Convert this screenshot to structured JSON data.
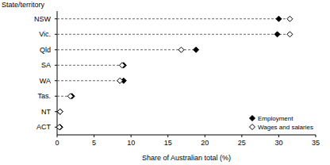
{
  "chart_data": {
    "type": "dot",
    "orientation": "horizontal",
    "y_label": "State/territory",
    "x_label": "Share of Australian total (%)",
    "categories": [
      "NSW",
      "Vic.",
      "Qld",
      "SA",
      "WA",
      "Tas.",
      "NT",
      "ACT"
    ],
    "series": [
      {
        "name": "Employment",
        "color": "#000000",
        "marker": "diamond",
        "values": [
          30.0,
          29.8,
          18.8,
          9.0,
          9.0,
          2.0,
          0.4,
          0.4
        ]
      },
      {
        "name": "Wages and salaries",
        "color": "#000000",
        "marker": "open-diamond",
        "values": [
          31.5,
          31.5,
          16.8,
          8.8,
          8.5,
          1.8,
          0.4,
          0.3
        ]
      }
    ],
    "xlim": [
      0,
      35
    ],
    "xticks": [
      0,
      5,
      10,
      15,
      20,
      25,
      30,
      35
    ],
    "grid": false,
    "legend": "lower right"
  }
}
